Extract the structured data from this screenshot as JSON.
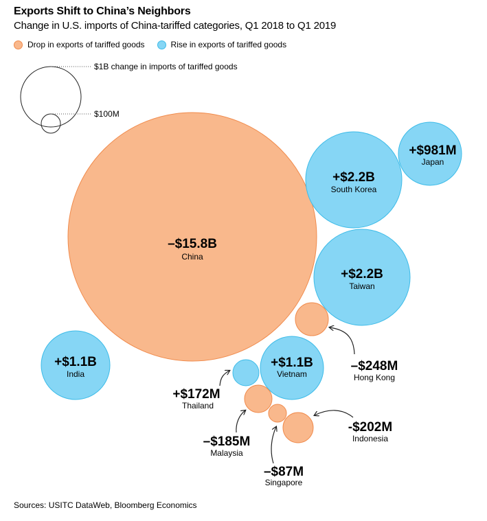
{
  "header": {
    "title": "Exports Shift to China’s Neighbors",
    "subtitle": "Change in U.S. imports of China-tariffed categories, Q1 2018 to Q1 2019"
  },
  "legend": {
    "drop_label": "Drop in exports of tariffed goods",
    "rise_label": "Rise in exports of tariffed goods"
  },
  "size_key": {
    "large_label": "$1B change in imports of tariffed goods",
    "small_label": "$100M"
  },
  "colors": {
    "drop_fill": "#f9b88c",
    "drop_stroke": "#f08a4b",
    "rise_fill": "#86d6f5",
    "rise_stroke": "#3cbbe8"
  },
  "chart_data": {
    "type": "bubble",
    "title": "Exports Shift to China’s Neighbors",
    "subtitle": "Change in U.S. imports of China-tariffed categories, Q1 2018 to Q1 2019",
    "unit": "USD",
    "series": [
      {
        "name": "Drop in exports of tariffed goods",
        "points": [
          {
            "label": "China",
            "value_label": "–$15.8B",
            "value": -15800000000
          },
          {
            "label": "Hong Kong",
            "value_label": "–$248M",
            "value": -248000000
          },
          {
            "label": "Malaysia",
            "value_label": "–$185M",
            "value": -185000000
          },
          {
            "label": "Indonesia",
            "value_label": "-$202M",
            "value": -202000000
          },
          {
            "label": "Singapore",
            "value_label": "–$87M",
            "value": -87000000
          }
        ]
      },
      {
        "name": "Rise in exports of tariffed goods",
        "points": [
          {
            "label": "South Korea",
            "value_label": "+$2.2B",
            "value": 2200000000
          },
          {
            "label": "Japan",
            "value_label": "+$981M",
            "value": 981000000
          },
          {
            "label": "Taiwan",
            "value_label": "+$2.2B",
            "value": 2200000000
          },
          {
            "label": "India",
            "value_label": "+$1.1B",
            "value": 1100000000
          },
          {
            "label": "Vietnam",
            "value_label": "+$1.1B",
            "value": 1100000000
          },
          {
            "label": "Thailand",
            "value_label": "+$172M",
            "value": 172000000
          }
        ]
      }
    ]
  },
  "footer": {
    "source": "Sources: USITC DataWeb, Bloomberg Economics"
  }
}
